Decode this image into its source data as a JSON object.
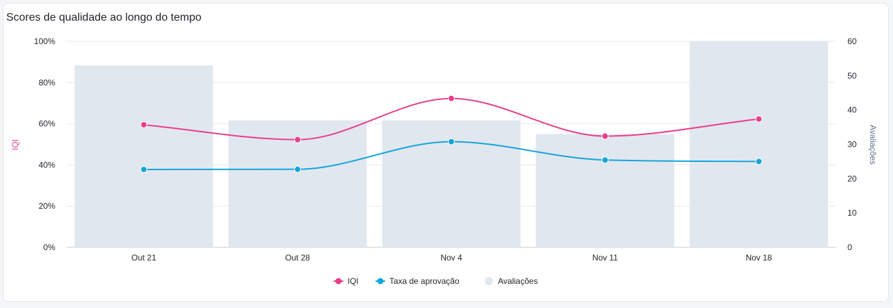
{
  "chart_data": {
    "type": "bar+line",
    "title": "Scores de qualidade ao longo do tempo",
    "categories": [
      "Out 21",
      "Out 28",
      "Nov 4",
      "Nov 11",
      "Nov 18"
    ],
    "left_axis": {
      "label": "IQI",
      "ticks": [
        "0%",
        "20%",
        "40%",
        "60%",
        "80%",
        "100%"
      ],
      "range": [
        0,
        100
      ],
      "unit": "%"
    },
    "right_axis": {
      "label": "Avaliações",
      "ticks": [
        "0",
        "10",
        "20",
        "30",
        "40",
        "50",
        "60"
      ],
      "range": [
        0,
        60
      ]
    },
    "series": [
      {
        "name": "IQI",
        "kind": "line",
        "axis": "left",
        "color": "#e83e8c",
        "values": [
          59.5,
          52.3,
          72.3,
          54.0,
          62.3
        ]
      },
      {
        "name": "Taxa de aprovação",
        "kind": "line",
        "axis": "left",
        "color": "#14a5d9",
        "values": [
          37.8,
          37.9,
          51.3,
          42.4,
          41.7
        ]
      },
      {
        "name": "Avaliações",
        "kind": "bar",
        "axis": "right",
        "color": "#e1e7ef",
        "values": [
          53,
          37,
          37,
          33,
          60
        ]
      }
    ],
    "grid": true,
    "legend_position": "bottom"
  }
}
